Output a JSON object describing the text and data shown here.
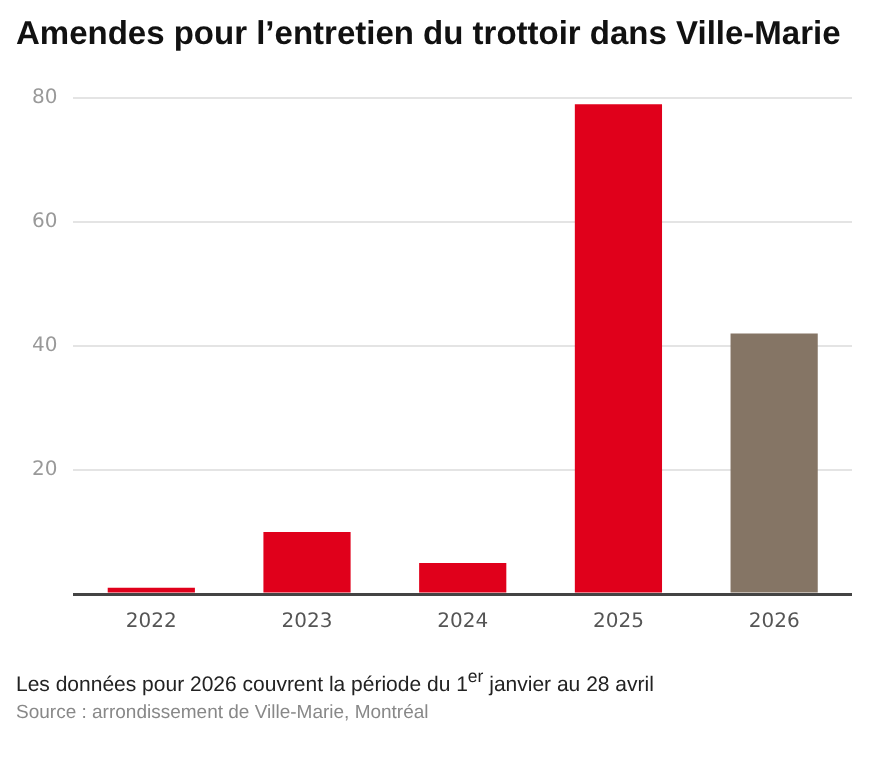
{
  "chart_data": {
    "type": "bar",
    "title": "Amendes pour l’entretien du trottoir dans Ville-Marie",
    "categories": [
      "2022",
      "2023",
      "2024",
      "2025",
      "2026"
    ],
    "values": [
      1,
      10,
      5,
      79,
      42
    ],
    "colors": [
      "#e0001b",
      "#e0001b",
      "#e0001b",
      "#e0001b",
      "#857565"
    ],
    "ylim": [
      0,
      80
    ],
    "yticks": [
      {
        "value": 0,
        "label": null
      },
      20,
      40,
      60,
      80
    ],
    "grid": "y",
    "annotations": [
      "Les données pour 2026 couvrent la période du 1$^{er}$ janvier au 28 avril",
      "Source : arrondissement de Ville-Marie, Montréal"
    ]
  }
}
